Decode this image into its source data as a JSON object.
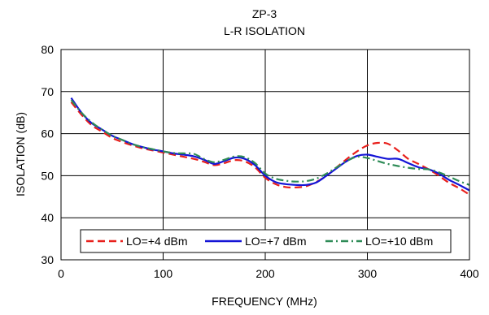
{
  "chart_data": {
    "type": "line",
    "title": "ZP-3",
    "subtitle": "L-R ISOLATION",
    "xlabel": "FREQUENCY (MHz)",
    "ylabel": "ISOLATION (dB)",
    "xlim": [
      0,
      400
    ],
    "ylim": [
      30,
      80
    ],
    "xticks": [
      0,
      100,
      200,
      300,
      400
    ],
    "yticks": [
      30,
      40,
      50,
      60,
      70,
      80
    ],
    "grid": true,
    "legend_position": "bottom-center",
    "series": [
      {
        "name": "LO=+4 dBm",
        "color": "#e8201c",
        "dash": "dashed",
        "x": [
          10,
          20,
          30,
          40,
          50,
          60,
          70,
          80,
          90,
          100,
          110,
          120,
          130,
          140,
          150,
          160,
          170,
          180,
          190,
          200,
          210,
          220,
          230,
          240,
          250,
          260,
          270,
          280,
          290,
          300,
          310,
          320,
          330,
          340,
          350,
          360,
          370,
          380,
          390,
          400
        ],
        "y": [
          67.5,
          64.5,
          62.0,
          60.5,
          59.0,
          58.0,
          57.2,
          56.5,
          56.0,
          55.5,
          55.0,
          54.5,
          54.0,
          53.3,
          52.5,
          53.0,
          53.7,
          53.4,
          52.0,
          49.5,
          48.0,
          47.3,
          47.2,
          47.5,
          48.5,
          50.0,
          52.0,
          54.0,
          55.8,
          57.2,
          57.8,
          57.6,
          56.0,
          54.0,
          52.8,
          51.5,
          50.0,
          48.3,
          47.0,
          45.5
        ]
      },
      {
        "name": "LO=+7 dBm",
        "color": "#1414d6",
        "dash": "solid",
        "x": [
          10,
          20,
          30,
          40,
          50,
          60,
          70,
          80,
          90,
          100,
          110,
          120,
          130,
          140,
          150,
          160,
          170,
          180,
          190,
          200,
          210,
          220,
          230,
          240,
          250,
          260,
          270,
          280,
          290,
          300,
          310,
          320,
          330,
          340,
          350,
          360,
          370,
          380,
          390,
          400
        ],
        "y": [
          68.5,
          65.0,
          62.5,
          61.0,
          59.5,
          58.5,
          57.5,
          56.8,
          56.2,
          55.8,
          55.3,
          55.0,
          54.6,
          53.8,
          52.8,
          53.5,
          54.3,
          54.0,
          52.5,
          50.0,
          48.5,
          48.0,
          47.8,
          47.8,
          48.4,
          50.0,
          51.8,
          53.5,
          54.7,
          55.0,
          54.5,
          54.0,
          54.0,
          53.0,
          52.0,
          51.5,
          50.5,
          49.0,
          47.8,
          46.5
        ]
      },
      {
        "name": "LO=+10 dBm",
        "color": "#2e8b57",
        "dash": "dashdot",
        "x": [
          10,
          20,
          30,
          40,
          50,
          60,
          70,
          80,
          90,
          100,
          110,
          120,
          130,
          140,
          150,
          160,
          170,
          180,
          190,
          200,
          210,
          220,
          230,
          240,
          250,
          260,
          270,
          280,
          290,
          300,
          310,
          320,
          330,
          340,
          350,
          360,
          370,
          380,
          390,
          400
        ],
        "y": [
          68.0,
          65.0,
          62.7,
          61.0,
          59.5,
          58.5,
          57.5,
          56.8,
          56.3,
          55.8,
          55.4,
          55.3,
          55.2,
          54.0,
          53.2,
          53.8,
          54.6,
          54.4,
          53.0,
          50.5,
          49.3,
          48.8,
          48.6,
          48.7,
          49.3,
          50.5,
          52.0,
          53.5,
          54.5,
          54.2,
          53.5,
          52.8,
          52.3,
          51.9,
          51.6,
          51.5,
          50.8,
          49.8,
          48.7,
          47.8
        ]
      }
    ]
  }
}
